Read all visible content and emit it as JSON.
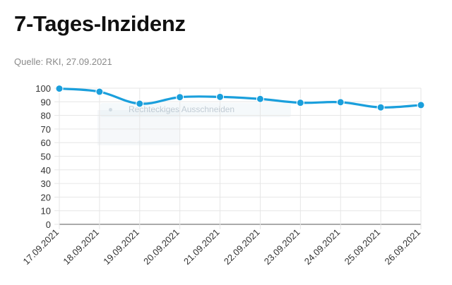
{
  "header": {
    "title": "7-Tages-Inzidenz",
    "source": "Quelle: RKI, 27.09.2021"
  },
  "tooltip_ghost": {
    "label": "Rechteckiges Ausschneiden"
  },
  "colors": {
    "line": "#1a9fdc",
    "grid": "#e6e6e6",
    "axis": "#555555",
    "title": "#111111",
    "source": "#8a8a8a"
  },
  "chart_data": {
    "type": "line",
    "title": "7-Tages-Inzidenz",
    "xlabel": "",
    "ylabel": "",
    "categories": [
      "17.09.2021",
      "18.09.2021",
      "19.09.2021",
      "20.09.2021",
      "21.09.2021",
      "22.09.2021",
      "23.09.2021",
      "24.09.2021",
      "25.09.2021",
      "26.09.2021"
    ],
    "series": [
      {
        "values": [
          99.7,
          97.4,
          88.6,
          93.4,
          93.6,
          92.1,
          89.3,
          89.7,
          85.9,
          87.6
        ]
      }
    ],
    "ylim": [
      0,
      100
    ],
    "yticks": [
      0,
      10,
      20,
      30,
      40,
      50,
      60,
      70,
      80,
      90,
      100
    ],
    "grid": true,
    "legend": "none"
  }
}
